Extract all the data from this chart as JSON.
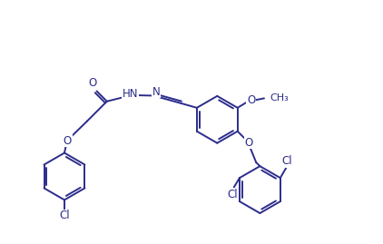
{
  "background": "#ffffff",
  "line_color": "#2c2c8c",
  "text_color": "#2c2c8c",
  "line_width": 1.4,
  "font_size": 8.5,
  "figsize": [
    4.22,
    2.69
  ],
  "dpi": 100,
  "xlim": [
    0,
    10
  ],
  "ylim": [
    0,
    6.37
  ]
}
